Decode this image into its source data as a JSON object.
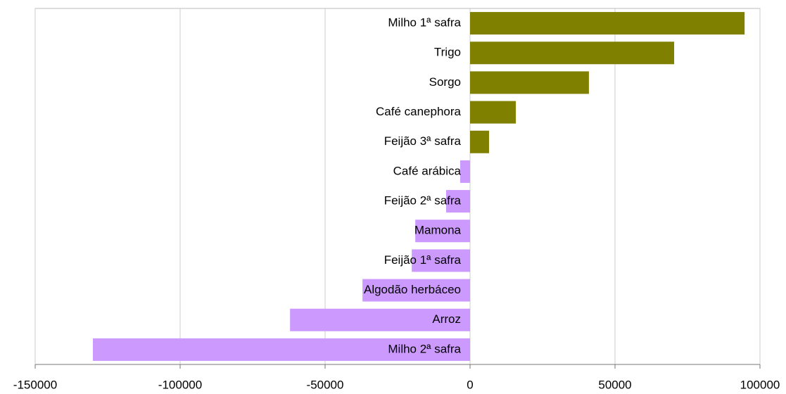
{
  "chart_data": {
    "type": "barh",
    "categories": [
      "Milho 1ª safra",
      "Trigo",
      "Sorgo",
      "Café canephora",
      "Feijão 3ª safra",
      "Café arábica",
      "Feijão 2ª safra",
      "Mamona",
      "Feijão 1ª safra",
      "Algodão herbáceo",
      "Arroz",
      "Milho 2ª safra"
    ],
    "values": [
      94700,
      70400,
      41000,
      15800,
      6550,
      -3400,
      -8250,
      -18900,
      -20100,
      -37100,
      -62100,
      -130100
    ],
    "color_positive": "#808000",
    "color_negative": "#cc99ff",
    "xlim": [
      -150000,
      100000
    ],
    "xticks": [
      -150000,
      -100000,
      -50000,
      0,
      50000,
      100000
    ],
    "grid": true
  }
}
